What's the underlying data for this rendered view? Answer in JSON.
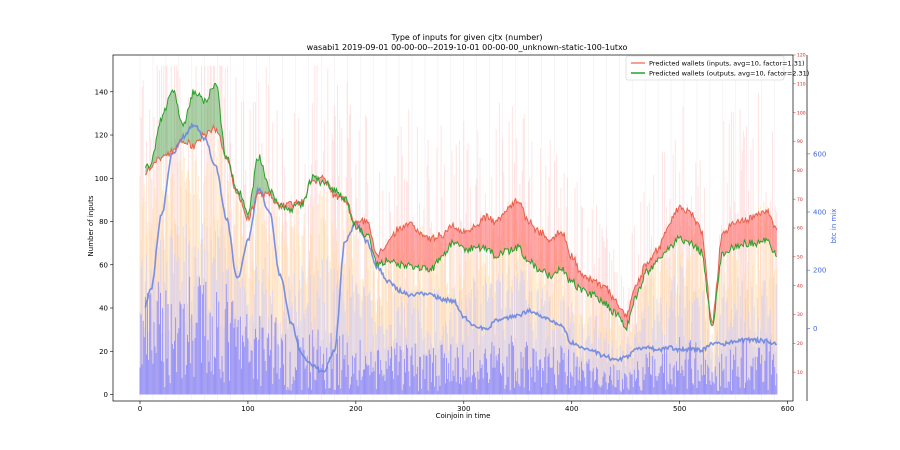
{
  "chart_data": {
    "type": "line",
    "title": "Type of inputs for given cjtx (number)",
    "subtitle": "wasabi1 2019-09-01 00-00-00--2019-10-01 00-00-00_unknown-static-100-1utxo",
    "xlabel": "Coinjoin in time",
    "ylabel": "Number of inputs",
    "y2label": "btc in mix",
    "xlim": [
      -25,
      605
    ],
    "ylim": [
      -3,
      157
    ],
    "y1_right_lim": [
      0,
      120
    ],
    "y2_right_lim": [
      -250,
      940
    ],
    "x_ticks": [
      0,
      100,
      200,
      300,
      400,
      500,
      600
    ],
    "y_ticks": [
      0,
      20,
      40,
      60,
      80,
      100,
      120,
      140
    ],
    "y1_right_ticks": [
      10,
      20,
      30,
      40,
      50,
      60,
      70,
      80,
      90,
      100,
      110,
      120
    ],
    "y2_right_ticks": [
      0,
      200,
      400,
      600
    ],
    "legend": {
      "position": "upper right",
      "entries": [
        {
          "label": "Predicted wallets (inputs, avg=10, factor=1.31)",
          "color": "#f08070"
        },
        {
          "label": "Predicted wallets (outputs, avg=10, factor=2.31)",
          "color": "#2ca02c"
        }
      ]
    },
    "colors": {
      "inputs_line": "#e8604c",
      "outputs_line": "#2ca02c",
      "red_fill": "#ff5a5a",
      "green_fill": "#3a9a3a",
      "btc_line": "#6a86e0",
      "bars_dark": "#7b7bff",
      "bars_light": "#c9c9ff",
      "bars_yellow": "#ffd591",
      "bars_pink": "#ffb0b0"
    },
    "series_base": {
      "x": [
        0,
        10,
        20,
        30,
        40,
        50,
        60,
        70,
        80,
        90,
        100,
        110,
        120,
        130,
        140,
        150,
        160,
        170,
        180,
        190,
        200,
        210,
        220,
        230,
        240,
        250,
        260,
        270,
        280,
        290,
        300,
        310,
        320,
        330,
        340,
        350,
        360,
        370,
        380,
        390,
        400,
        410,
        420,
        430,
        440,
        450,
        460,
        470,
        480,
        490,
        500,
        510,
        520,
        530,
        540,
        550,
        560,
        570,
        580,
        590
      ],
      "wallets_inputs": [
        100,
        105,
        110,
        112,
        118,
        115,
        120,
        123,
        110,
        93,
        82,
        92,
        92,
        87,
        88,
        89,
        99,
        100,
        92,
        90,
        80,
        80,
        65,
        70,
        77,
        79,
        75,
        72,
        74,
        78,
        75,
        78,
        82,
        80,
        85,
        90,
        80,
        75,
        72,
        76,
        64,
        55,
        53,
        50,
        44,
        36,
        51,
        61,
        67,
        79,
        86,
        84,
        76,
        34,
        75,
        79,
        80,
        83,
        85,
        77
      ],
      "wallets_outputs": [
        102,
        107,
        128,
        141,
        125,
        140,
        136,
        144,
        110,
        95,
        85,
        110,
        95,
        87,
        86,
        88,
        100,
        98,
        95,
        90,
        78,
        74,
        60,
        62,
        60,
        60,
        58,
        58,
        64,
        70,
        67,
        68,
        68,
        64,
        66,
        68,
        62,
        58,
        55,
        58,
        52,
        48,
        46,
        42,
        38,
        31,
        46,
        57,
        62,
        68,
        72,
        70,
        66,
        33,
        65,
        68,
        70,
        70,
        72,
        65
      ],
      "btc_in_mix": [
        10,
        130,
        390,
        600,
        660,
        700,
        650,
        560,
        380,
        170,
        300,
        480,
        400,
        180,
        20,
        -90,
        -130,
        -150,
        -80,
        300,
        360,
        300,
        210,
        160,
        130,
        115,
        120,
        115,
        100,
        95,
        40,
        10,
        -5,
        25,
        35,
        45,
        60,
        45,
        30,
        10,
        -50,
        -70,
        -80,
        -95,
        -110,
        -100,
        -70,
        -65,
        -75,
        -65,
        -75,
        -70,
        -75,
        -55,
        -55,
        -45,
        -40,
        -40,
        -45,
        -55
      ]
    }
  }
}
